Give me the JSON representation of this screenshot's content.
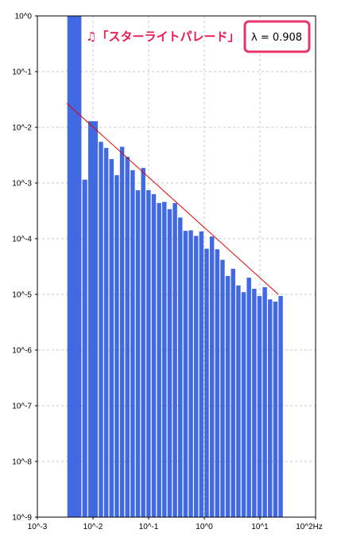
{
  "chart_data": {
    "type": "bar",
    "title": "♫「スターライトパレード」",
    "annotation": "λ = 0.908",
    "x_scale": "log",
    "y_scale": "log",
    "xlim_exponent": [
      -3,
      2
    ],
    "ylim_exponent": [
      -9,
      0
    ],
    "x_tick_labels": [
      "10^-3",
      "10^-2",
      "10^-1",
      "10^0",
      "10^1",
      "10^2Hz"
    ],
    "y_tick_labels": [
      "10^0",
      "10^-1",
      "10^-2",
      "10^-3",
      "10^-4",
      "10^-5",
      "10^-6",
      "10^-7",
      "10^-8",
      "10^-9"
    ],
    "grid": true,
    "bar_color": "#4169e1",
    "fit_line_color": "#e00000",
    "annotation_border_color": "#e8336a",
    "bars": [
      {
        "x_exp_start": -2.47,
        "x_exp_end": -2.2,
        "log_y": 0.0
      },
      {
        "x_exp_start": -2.2,
        "x_exp_end": -2.095,
        "log_y": -2.94
      },
      {
        "x_exp_start": -2.095,
        "x_exp_end": -1.905,
        "log_y": -1.89
      },
      {
        "x_exp_start": -1.905,
        "x_exp_end": -1.81,
        "log_y": -2.26
      },
      {
        "x_exp_start": -1.81,
        "x_exp_end": -1.715,
        "log_y": -2.37
      },
      {
        "x_exp_start": -1.715,
        "x_exp_end": -1.62,
        "log_y": -2.57
      },
      {
        "x_exp_start": -1.62,
        "x_exp_end": -1.525,
        "log_y": -2.86
      },
      {
        "x_exp_start": -1.525,
        "x_exp_end": -1.43,
        "log_y": -2.35
      },
      {
        "x_exp_start": -1.43,
        "x_exp_end": -1.335,
        "log_y": -2.53
      },
      {
        "x_exp_start": -1.335,
        "x_exp_end": -1.24,
        "log_y": -2.77
      },
      {
        "x_exp_start": -1.24,
        "x_exp_end": -1.145,
        "log_y": -3.13
      },
      {
        "x_exp_start": -1.145,
        "x_exp_end": -1.05,
        "log_y": -2.73
      },
      {
        "x_exp_start": -1.05,
        "x_exp_end": -0.955,
        "log_y": -3.13
      },
      {
        "x_exp_start": -0.955,
        "x_exp_end": -0.86,
        "log_y": -3.2
      },
      {
        "x_exp_start": -0.86,
        "x_exp_end": -0.765,
        "log_y": -3.36
      },
      {
        "x_exp_start": -0.765,
        "x_exp_end": -0.67,
        "log_y": -3.34
      },
      {
        "x_exp_start": -0.67,
        "x_exp_end": -0.575,
        "log_y": -3.47
      },
      {
        "x_exp_start": -0.575,
        "x_exp_end": -0.48,
        "log_y": -3.36
      },
      {
        "x_exp_start": -0.48,
        "x_exp_end": -0.385,
        "log_y": -3.62
      },
      {
        "x_exp_start": -0.385,
        "x_exp_end": -0.29,
        "log_y": -3.86
      },
      {
        "x_exp_start": -0.29,
        "x_exp_end": -0.195,
        "log_y": -3.85
      },
      {
        "x_exp_start": -0.195,
        "x_exp_end": -0.1,
        "log_y": -3.95
      },
      {
        "x_exp_start": -0.1,
        "x_exp_end": -0.005,
        "log_y": -3.87
      },
      {
        "x_exp_start": -0.005,
        "x_exp_end": 0.09,
        "log_y": -4.18
      },
      {
        "x_exp_start": 0.09,
        "x_exp_end": 0.185,
        "log_y": -3.96
      },
      {
        "x_exp_start": 0.185,
        "x_exp_end": 0.28,
        "log_y": -4.19
      },
      {
        "x_exp_start": 0.28,
        "x_exp_end": 0.375,
        "log_y": -4.38
      },
      {
        "x_exp_start": 0.375,
        "x_exp_end": 0.47,
        "log_y": -4.67
      },
      {
        "x_exp_start": 0.47,
        "x_exp_end": 0.565,
        "log_y": -4.54
      },
      {
        "x_exp_start": 0.565,
        "x_exp_end": 0.66,
        "log_y": -4.84
      },
      {
        "x_exp_start": 0.66,
        "x_exp_end": 0.755,
        "log_y": -4.96
      },
      {
        "x_exp_start": 0.755,
        "x_exp_end": 0.85,
        "log_y": -4.7
      },
      {
        "x_exp_start": 0.85,
        "x_exp_end": 0.945,
        "log_y": -4.9
      },
      {
        "x_exp_start": 0.945,
        "x_exp_end": 1.04,
        "log_y": -5.03
      },
      {
        "x_exp_start": 1.04,
        "x_exp_end": 1.135,
        "log_y": -4.87
      },
      {
        "x_exp_start": 1.135,
        "x_exp_end": 1.23,
        "log_y": -5.09
      },
      {
        "x_exp_start": 1.23,
        "x_exp_end": 1.325,
        "log_y": -5.13
      },
      {
        "x_exp_start": 1.325,
        "x_exp_end": 1.42,
        "log_y": -5.03
      }
    ],
    "fit_line": {
      "x_exp": [
        -2.47,
        1.33
      ],
      "log_y": [
        -1.57,
        -5.0
      ]
    }
  }
}
